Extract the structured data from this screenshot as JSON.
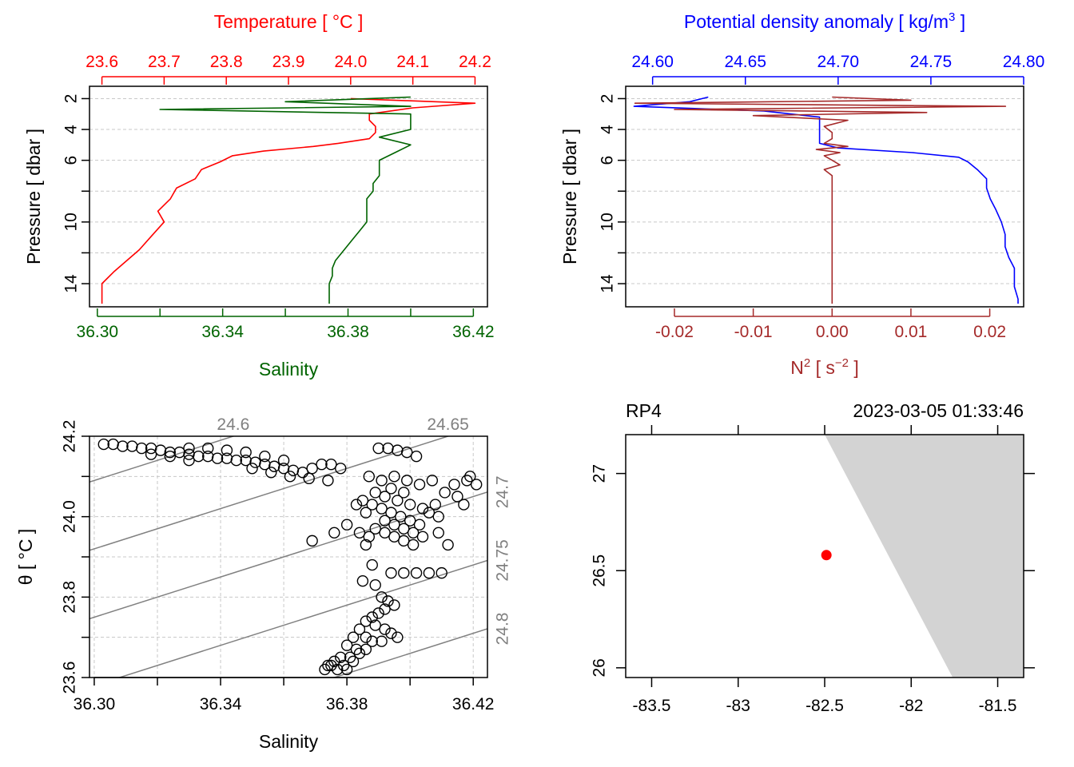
{
  "chart_data": [
    {
      "type": "line",
      "panel": "profile-temperature-salinity",
      "y_axis": {
        "label": "Pressure [ dbar ]",
        "range": [
          15.5,
          1.2
        ],
        "ticks": [
          2,
          4,
          6,
          8,
          10,
          12,
          14
        ],
        "tick_labels": [
          "2",
          "4",
          "6",
          "10",
          "14"
        ],
        "inverted": true
      },
      "top_axis": {
        "label": "Temperature [ °C ]",
        "range": [
          23.58,
          24.22
        ],
        "ticks": [
          23.6,
          23.7,
          23.8,
          23.9,
          24.0,
          24.1,
          24.2
        ],
        "tick_labels": [
          "23.6",
          "23.7",
          "23.8",
          "23.9",
          "24.0",
          "24.1",
          "24.2"
        ],
        "color": "#ff0000"
      },
      "bottom_axis": {
        "label": "Salinity",
        "range": [
          36.2975,
          36.4245
        ],
        "ticks": [
          36.3,
          36.32,
          36.34,
          36.36,
          36.38,
          36.4,
          36.42
        ],
        "tick_labels": [
          "36.30",
          "36.34",
          "36.38",
          "36.42"
        ],
        "color": "#006400"
      },
      "series": [
        {
          "name": "Temperature",
          "axis": "top",
          "color": "#ff0000",
          "pressure": [
            2.0,
            2.3,
            2.6,
            3.0,
            3.4,
            3.8,
            4.2,
            4.6,
            4.9,
            5.1,
            5.4,
            5.7,
            6.1,
            6.6,
            7.2,
            7.8,
            8.5,
            9.3,
            10.0,
            10.9,
            11.8,
            12.5,
            13.2,
            14.0,
            15.0,
            15.3
          ],
          "values": [
            24.0,
            24.2,
            24.1,
            24.03,
            24.03,
            24.04,
            24.04,
            24.03,
            23.98,
            23.94,
            23.86,
            23.81,
            23.79,
            23.76,
            23.75,
            23.72,
            23.71,
            23.69,
            23.7,
            23.68,
            23.66,
            23.64,
            23.62,
            23.6,
            23.6,
            23.6
          ]
        },
        {
          "name": "Salinity",
          "axis": "bottom",
          "color": "#006400",
          "pressure": [
            1.9,
            2.2,
            2.5,
            2.7,
            3.0,
            3.5,
            4.0,
            4.5,
            5.0,
            5.5,
            6.0,
            6.5,
            7.0,
            7.5,
            8.0,
            8.5,
            9.0,
            9.5,
            10.0,
            10.5,
            11.0,
            11.5,
            12.0,
            12.5,
            13.0,
            13.5,
            14.0,
            14.5,
            15.0,
            15.3
          ],
          "values": [
            36.4,
            36.36,
            36.4,
            36.32,
            36.4,
            36.4,
            36.4,
            36.39,
            36.4,
            36.395,
            36.39,
            36.39,
            36.39,
            36.388,
            36.388,
            36.386,
            36.386,
            36.386,
            36.386,
            36.384,
            36.382,
            36.38,
            36.378,
            36.376,
            36.375,
            36.375,
            36.374,
            36.374,
            36.374,
            36.374
          ]
        }
      ]
    },
    {
      "type": "line",
      "panel": "profile-density-N2",
      "y_axis": {
        "label": "Pressure [ dbar ]",
        "range": [
          15.5,
          1.2
        ],
        "ticks": [
          2,
          4,
          6,
          8,
          10,
          12,
          14
        ],
        "tick_labels": [
          "2",
          "4",
          "6",
          "10",
          "14"
        ],
        "inverted": true
      },
      "top_axis": {
        "label": "Potential density anomaly [ kg/m",
        "label_sup": "3",
        "label_end": " ]",
        "range": [
          24.5855,
          24.8
        ],
        "ticks": [
          24.6,
          24.65,
          24.7,
          24.75,
          24.8
        ],
        "tick_labels": [
          "24.60",
          "24.65",
          "24.70",
          "24.75",
          "24.80"
        ],
        "color": "#0000ff"
      },
      "bottom_axis": {
        "label": "N",
        "label_sup": "2",
        "label_mid": " [ s",
        "label_sup2": "−2",
        "label_end": " ]",
        "range": [
          -0.02618,
          0.0243
        ],
        "ticks": [
          -0.02,
          -0.01,
          0.0,
          0.01,
          0.02
        ],
        "tick_labels": [
          "-0.02",
          "-0.01",
          "0.00",
          "0.01",
          "0.02"
        ],
        "color": "#a52a2a"
      },
      "series": [
        {
          "name": "Potential density anomaly",
          "axis": "top",
          "color": "#0000ff",
          "pressure": [
            1.9,
            2.2,
            2.5,
            2.8,
            3.2,
            3.6,
            4.0,
            4.5,
            4.9,
            5.2,
            5.5,
            5.8,
            6.1,
            6.6,
            7.2,
            7.8,
            8.5,
            9.2,
            10.0,
            10.8,
            11.6,
            12.3,
            13.0,
            13.6,
            14.2,
            15.0,
            15.3
          ],
          "values": [
            24.63,
            24.62,
            24.59,
            24.66,
            24.69,
            24.69,
            24.69,
            24.69,
            24.69,
            24.7,
            24.74,
            24.765,
            24.77,
            24.775,
            24.78,
            24.78,
            24.782,
            24.785,
            24.788,
            24.79,
            24.79,
            24.792,
            24.795,
            24.795,
            24.795,
            24.797,
            24.797
          ]
        },
        {
          "name": "N2",
          "axis": "bottom",
          "color": "#a52a2a",
          "pressure": [
            1.9,
            2.1,
            2.3,
            2.5,
            2.7,
            2.9,
            3.1,
            3.4,
            3.8,
            4.2,
            4.6,
            4.9,
            5.1,
            5.3,
            5.5,
            5.7,
            6.0,
            6.3,
            6.6,
            7.0,
            8.0,
            10.0,
            12.0,
            14.0,
            15.3
          ],
          "values": [
            0.0,
            0.01,
            -0.025,
            0.022,
            -0.02,
            0.012,
            -0.01,
            0.002,
            -0.001,
            0.0,
            0.0,
            -0.001,
            0.002,
            -0.002,
            0.001,
            -0.001,
            0.0,
            0.001,
            -0.001,
            0.0,
            0.0,
            0.0,
            0.0,
            0.0,
            0.0
          ]
        }
      ]
    },
    {
      "type": "scatter",
      "panel": "TS-diagram",
      "xlabel": "Salinity",
      "ylabel": "θ [ °C ]",
      "xlim": [
        36.2985,
        36.4245
      ],
      "ylim": [
        23.6,
        24.2
      ],
      "x_ticks": [
        36.3,
        36.32,
        36.34,
        36.36,
        36.38,
        36.4,
        36.42
      ],
      "x_tick_labels": [
        "36.30",
        "36.34",
        "36.38",
        "36.42"
      ],
      "y_ticks": [
        23.6,
        23.7,
        23.8,
        23.9,
        24.0,
        24.1,
        24.2
      ],
      "y_tick_labels": [
        "23.6",
        "23.8",
        "24.0",
        "24.2"
      ],
      "isopycnals": [
        {
          "label": "24.6",
          "sigma": 24.6,
          "slope": 2.5,
          "intercept_at_36_30": 24.09
        },
        {
          "label": "24.65",
          "sigma": 24.65,
          "slope": 2.5,
          "intercept_at_36_30": 23.92
        },
        {
          "label": "24.7",
          "sigma": 24.7,
          "slope": 2.5,
          "intercept_at_36_30": 23.75
        },
        {
          "label": "24.75",
          "sigma": 24.75,
          "slope": 2.5,
          "intercept_at_36_30": 23.58
        },
        {
          "label": "24.8",
          "sigma": 24.8,
          "slope": 2.5,
          "intercept_at_36_30": 23.41
        }
      ],
      "points": [
        [
          36.303,
          24.18
        ],
        [
          36.306,
          24.18
        ],
        [
          36.309,
          24.175
        ],
        [
          36.312,
          24.175
        ],
        [
          36.315,
          24.17
        ],
        [
          36.318,
          24.17
        ],
        [
          36.321,
          24.165
        ],
        [
          36.324,
          24.16
        ],
        [
          36.327,
          24.16
        ],
        [
          36.33,
          24.155
        ],
        [
          36.333,
          24.15
        ],
        [
          36.336,
          24.15
        ],
        [
          36.339,
          24.145
        ],
        [
          36.342,
          24.145
        ],
        [
          36.345,
          24.14
        ],
        [
          36.348,
          24.14
        ],
        [
          36.351,
          24.135
        ],
        [
          36.354,
          24.13
        ],
        [
          36.357,
          24.125
        ],
        [
          36.36,
          24.12
        ],
        [
          36.363,
          24.115
        ],
        [
          36.366,
          24.11
        ],
        [
          36.369,
          24.12
        ],
        [
          36.372,
          24.13
        ],
        [
          36.375,
          24.13
        ],
        [
          36.378,
          24.12
        ],
        [
          36.33,
          24.17
        ],
        [
          36.336,
          24.17
        ],
        [
          36.342,
          24.165
        ],
        [
          36.348,
          24.16
        ],
        [
          36.354,
          24.15
        ],
        [
          36.36,
          24.14
        ],
        [
          36.35,
          24.12
        ],
        [
          36.356,
          24.11
        ],
        [
          36.362,
          24.1
        ],
        [
          36.368,
          24.095
        ],
        [
          36.374,
          24.09
        ],
        [
          36.318,
          24.155
        ],
        [
          36.324,
          24.15
        ],
        [
          36.33,
          24.14
        ],
        [
          36.39,
          24.17
        ],
        [
          36.393,
          24.17
        ],
        [
          36.396,
          24.165
        ],
        [
          36.399,
          24.16
        ],
        [
          36.402,
          24.15
        ],
        [
          36.387,
          24.1
        ],
        [
          36.391,
          24.09
        ],
        [
          36.395,
          24.1
        ],
        [
          36.399,
          24.09
        ],
        [
          36.403,
          24.08
        ],
        [
          36.407,
          24.09
        ],
        [
          36.411,
          24.06
        ],
        [
          36.415,
          24.05
        ],
        [
          36.418,
          24.09
        ],
        [
          36.421,
          24.08
        ],
        [
          36.419,
          24.1
        ],
        [
          36.417,
          24.03
        ],
        [
          36.414,
          24.08
        ],
        [
          36.385,
          24.04
        ],
        [
          36.388,
          24.03
        ],
        [
          36.391,
          24.02
        ],
        [
          36.394,
          24.01
        ],
        [
          36.397,
          24.0
        ],
        [
          36.4,
          23.99
        ],
        [
          36.403,
          23.98
        ],
        [
          36.406,
          24.01
        ],
        [
          36.409,
          24.0
        ],
        [
          36.392,
          23.99
        ],
        [
          36.395,
          23.98
        ],
        [
          36.398,
          23.97
        ],
        [
          36.401,
          23.96
        ],
        [
          36.404,
          23.95
        ],
        [
          36.389,
          23.97
        ],
        [
          36.392,
          23.96
        ],
        [
          36.395,
          23.95
        ],
        [
          36.398,
          23.94
        ],
        [
          36.401,
          23.93
        ],
        [
          36.386,
          24.01
        ],
        [
          36.383,
          24.03
        ],
        [
          36.389,
          24.06
        ],
        [
          36.392,
          24.05
        ],
        [
          36.396,
          24.04
        ],
        [
          36.4,
          24.03
        ],
        [
          36.404,
          24.02
        ],
        [
          36.408,
          24.03
        ],
        [
          36.394,
          24.07
        ],
        [
          36.398,
          24.06
        ],
        [
          36.387,
          23.95
        ],
        [
          36.386,
          23.93
        ],
        [
          36.38,
          23.98
        ],
        [
          36.384,
          23.96
        ],
        [
          36.376,
          23.96
        ],
        [
          36.369,
          23.94
        ],
        [
          36.412,
          23.93
        ],
        [
          36.409,
          23.96
        ],
        [
          36.388,
          23.88
        ],
        [
          36.385,
          23.84
        ],
        [
          36.394,
          23.86
        ],
        [
          36.398,
          23.86
        ],
        [
          36.402,
          23.86
        ],
        [
          36.406,
          23.86
        ],
        [
          36.41,
          23.86
        ],
        [
          36.389,
          23.83
        ],
        [
          36.391,
          23.8
        ],
        [
          36.393,
          23.79
        ],
        [
          36.395,
          23.78
        ],
        [
          36.392,
          23.77
        ],
        [
          36.39,
          23.76
        ],
        [
          36.388,
          23.75
        ],
        [
          36.386,
          23.74
        ],
        [
          36.389,
          23.73
        ],
        [
          36.392,
          23.72
        ],
        [
          36.394,
          23.71
        ],
        [
          36.396,
          23.7
        ],
        [
          36.384,
          23.72
        ],
        [
          36.382,
          23.7
        ],
        [
          36.386,
          23.7
        ],
        [
          36.388,
          23.69
        ],
        [
          36.391,
          23.69
        ],
        [
          36.38,
          23.68
        ],
        [
          36.383,
          23.67
        ],
        [
          36.386,
          23.67
        ],
        [
          36.378,
          23.65
        ],
        [
          36.381,
          23.65
        ],
        [
          36.384,
          23.66
        ],
        [
          36.376,
          23.64
        ],
        [
          36.379,
          23.63
        ],
        [
          36.382,
          23.64
        ],
        [
          36.374,
          23.63
        ],
        [
          36.377,
          23.62
        ],
        [
          36.38,
          23.62
        ],
        [
          36.373,
          23.62
        ],
        [
          36.375,
          23.63
        ]
      ]
    },
    {
      "type": "scatter",
      "panel": "station-map",
      "station": "RP4",
      "time": "2023-03-05 01:33:46",
      "xlim": [
        -83.65,
        -81.35
      ],
      "ylim": [
        25.95,
        27.2
      ],
      "x_ticks": [
        -83.5,
        -83,
        -82.5,
        -82,
        -81.5
      ],
      "x_tick_labels": [
        "-83.5",
        "-83",
        "-82.5",
        "-82",
        "-81.5"
      ],
      "y_ticks": [
        26,
        26.5,
        27
      ],
      "y_tick_labels": [
        "26",
        "26.5",
        "27"
      ],
      "station_lon": -82.49,
      "station_lat": 26.58,
      "station_color": "#ff0000",
      "land_color": "#d3d3d3",
      "land_polygon": [
        [
          -82.5,
          27.2
        ],
        [
          -81.35,
          27.2
        ],
        [
          -81.35,
          25.95
        ],
        [
          -81.76,
          25.95
        ]
      ]
    }
  ]
}
